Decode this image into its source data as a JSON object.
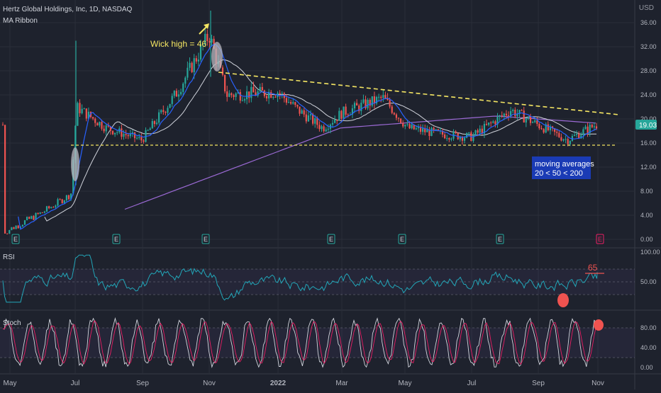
{
  "header": {
    "symbol_line": "Hertz Global Holdings, Inc, 1D, NASDAQ",
    "indicator": "MA Ribbon",
    "currency": "USD"
  },
  "annotations": {
    "wick_label": "Wick high = 46",
    "ma_box_line1": "moving averages",
    "ma_box_line2": "20 < 50 < 200",
    "rsi_value_label": "65",
    "last_price": "19.03"
  },
  "panes": {
    "rsi_label": "RSI",
    "stoch_label": "Stoch"
  },
  "earnings_marker": "E",
  "colors": {
    "background": "#1e222d",
    "candle_up": "#26a69a",
    "candle_down": "#ef5350",
    "ma20": "#2962ff",
    "ma50": "#d1d4dc",
    "ma200": "#9c6ad6",
    "trendline": "#f5e663",
    "rsi_line": "#22a6b8",
    "stoch_k": "#d1d4dc",
    "stoch_d": "#e91e63",
    "price_tag": "#26a69a",
    "ma_box": "#1a3bb5",
    "highlight_red": "#ef5350"
  },
  "chart_data": [
    {
      "type": "candlestick",
      "title": "Hertz Global Holdings, Inc, 1D, NASDAQ",
      "y_ticks": [
        "36.00",
        "32.00",
        "28.00",
        "24.00",
        "20.00",
        "16.00",
        "12.00",
        "8.00",
        "4.00",
        "0.00"
      ],
      "ylim": [
        0,
        38
      ],
      "x_ticks": [
        "May",
        "Jul",
        "Sep",
        "Nov",
        "2022",
        "Mar",
        "May",
        "Jul",
        "Sep",
        "Nov"
      ],
      "price_path": [
        {
          "t": "May 2021",
          "v": 1.2
        },
        {
          "t": "Jun 2021",
          "v": 4.5
        },
        {
          "t": "late Jun 2021",
          "v": 7.5
        },
        {
          "t": "Jul 2021",
          "v": 22.0
        },
        {
          "t": "Aug 2021",
          "v": 18.5
        },
        {
          "t": "Sep 2021",
          "v": 16.5
        },
        {
          "t": "Oct 2021",
          "v": 24.5
        },
        {
          "t": "Nov 2021",
          "v": 34.0
        },
        {
          "t": "mid Nov 2021",
          "v": 24.0
        },
        {
          "t": "Dec 2021",
          "v": 24.5
        },
        {
          "t": "Jan 2022",
          "v": 21.5
        },
        {
          "t": "Feb 2022",
          "v": 18.5
        },
        {
          "t": "Mar 2022",
          "v": 21.0
        },
        {
          "t": "Apr 2022",
          "v": 23.5
        },
        {
          "t": "May 2022",
          "v": 18.5
        },
        {
          "t": "Jun 2022",
          "v": 17.5
        },
        {
          "t": "Jul 2022",
          "v": 17.0
        },
        {
          "t": "Aug 2022",
          "v": 21.5
        },
        {
          "t": "Sep 2022",
          "v": 19.0
        },
        {
          "t": "Oct 2022",
          "v": 16.5
        },
        {
          "t": "late Oct 2022",
          "v": 19.03
        }
      ],
      "wick_high": 46,
      "support_level": 15.7,
      "resistance_trendline": [
        {
          "t": "Nov 2021",
          "v": 27.3
        },
        {
          "t": "Nov 2022",
          "v": 20.3
        }
      ],
      "moving_averages": [
        "20",
        "50",
        "200"
      ],
      "last_price": 19.03
    },
    {
      "type": "line",
      "title": "RSI",
      "y_ticks": [
        "100.00",
        "50.00"
      ],
      "ylim": [
        0,
        100
      ],
      "marked_level": 65
    },
    {
      "type": "line",
      "title": "Stoch",
      "y_ticks": [
        "80.00",
        "40.00",
        "0.00"
      ],
      "ylim": [
        0,
        100
      ],
      "levels": [
        80,
        20
      ]
    }
  ]
}
